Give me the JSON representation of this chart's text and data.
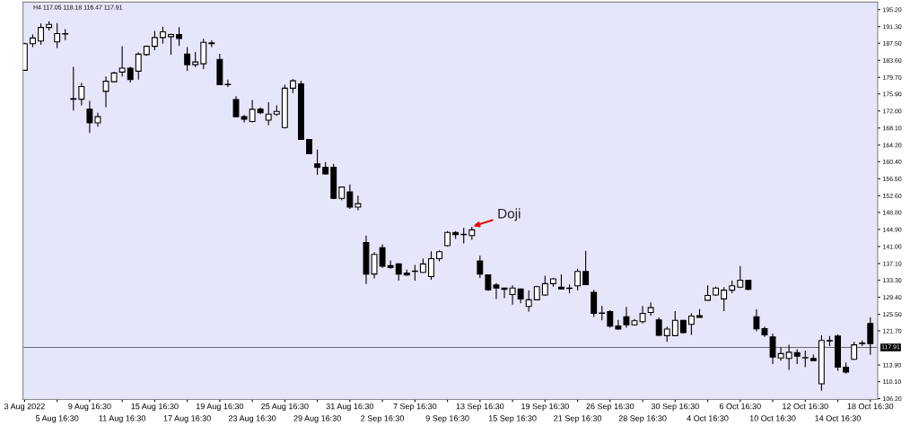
{
  "chart_data": {
    "type": "candlestick",
    "title": "H4 117.05 118.18 116.47 117.91",
    "categories": [
      "3 Aug 2022",
      null,
      null,
      null,
      "5 Aug 16:30",
      null,
      null,
      null,
      "9 Aug 16:30",
      null,
      null,
      null,
      "11 Aug 16:30",
      null,
      null,
      null,
      "15 Aug 16:30",
      null,
      null,
      null,
      "17 Aug 16:30",
      null,
      null,
      null,
      "19 Aug 16:30",
      null,
      null,
      null,
      "23 Aug 16:30",
      null,
      null,
      null,
      "25 Aug 16:30",
      null,
      null,
      null,
      "29 Aug 16:30",
      null,
      null,
      null,
      "31 Aug 16:30",
      null,
      null,
      null,
      "2 Sep 16:30",
      null,
      null,
      null,
      "7 Sep 16:30",
      null,
      null,
      null,
      "9 Sep 16:30",
      null,
      null,
      null,
      "13 Sep 16:30",
      null,
      null,
      null,
      "15 Sep 16:30",
      null,
      null,
      null,
      "19 Sep 16:30",
      null,
      null,
      null,
      "21 Sep 16:30",
      null,
      null,
      null,
      "26 Sep 16:30",
      null,
      null,
      null,
      "28 Sep 16:30",
      null,
      null,
      null,
      "30 Sep 16:30",
      null,
      null,
      null,
      "4 Oct 16:30",
      null,
      null,
      null,
      "6 Oct 16:30",
      null,
      null,
      null,
      "10 Oct 16:30",
      null,
      null,
      null,
      "12 Oct 16:30",
      null,
      null,
      null,
      "14 Oct 16:30",
      null,
      null,
      null,
      "18 Oct 16:30"
    ],
    "ohlc": [
      [
        181.3,
        187.6,
        181.3,
        187.4
      ],
      [
        187.4,
        189.5,
        186.6,
        188.7
      ],
      [
        188.0,
        192.0,
        187.2,
        191.1
      ],
      [
        191.1,
        192.5,
        190.4,
        191.8
      ],
      [
        187.8,
        192.1,
        186.4,
        189.7
      ],
      [
        189.7,
        190.7,
        188.2,
        189.6
      ],
      [
        174.8,
        182.1,
        172.1,
        174.7
      ],
      [
        174.7,
        178.4,
        173.3,
        177.6
      ],
      [
        172.4,
        174.3,
        167.0,
        169.3
      ],
      [
        169.3,
        171.6,
        168.4,
        170.7
      ],
      [
        176.5,
        179.9,
        172.9,
        178.8
      ],
      [
        178.7,
        181.0,
        178.5,
        180.7
      ],
      [
        180.9,
        186.8,
        179.9,
        181.8
      ],
      [
        181.8,
        182.1,
        178.5,
        179.2
      ],
      [
        181.1,
        185.4,
        179.2,
        185.0
      ],
      [
        184.9,
        187.0,
        184.6,
        186.8
      ],
      [
        186.8,
        190.3,
        185.9,
        188.8
      ],
      [
        188.8,
        191.3,
        187.4,
        190.1
      ],
      [
        189.0,
        189.7,
        184.9,
        189.5
      ],
      [
        189.5,
        191.2,
        186.9,
        188.6
      ],
      [
        185.0,
        186.6,
        181.2,
        182.6
      ],
      [
        182.6,
        185.5,
        182.0,
        183.2
      ],
      [
        182.8,
        188.5,
        181.6,
        187.7
      ],
      [
        187.4,
        188.2,
        186.6,
        187.6
      ],
      [
        183.8,
        185.1,
        177.9,
        178.0
      ],
      [
        178.1,
        179.2,
        177.5,
        178.0
      ],
      [
        174.6,
        175.4,
        170.5,
        170.7
      ],
      [
        170.7,
        171.1,
        169.4,
        170.1
      ],
      [
        169.6,
        174.5,
        169.4,
        172.4
      ],
      [
        172.4,
        172.8,
        171.3,
        171.6
      ],
      [
        169.9,
        174.0,
        168.7,
        171.3
      ],
      [
        171.3,
        173.3,
        170.9,
        171.9
      ],
      [
        168.2,
        178.0,
        168.0,
        177.2
      ],
      [
        177.2,
        179.3,
        176.1,
        178.9
      ],
      [
        178.2,
        178.9,
        165.5,
        165.5
      ],
      [
        165.5,
        165.6,
        162.1,
        162.2
      ],
      [
        159.9,
        163.2,
        157.4,
        159.1
      ],
      [
        159.1,
        160.3,
        157.4,
        157.6
      ],
      [
        159.1,
        159.9,
        151.9,
        152.0
      ],
      [
        152.0,
        154.7,
        151.6,
        154.6
      ],
      [
        153.5,
        155.2,
        149.6,
        150.0
      ],
      [
        150.0,
        152.6,
        149.3,
        150.8
      ],
      [
        141.9,
        143.5,
        132.4,
        134.7
      ],
      [
        134.7,
        139.7,
        133.7,
        139.2
      ],
      [
        140.7,
        141.5,
        136.1,
        136.5
      ],
      [
        136.6,
        137.8,
        135.9,
        136.2
      ],
      [
        137.0,
        137.2,
        133.2,
        134.7
      ],
      [
        134.9,
        135.7,
        134.3,
        134.5
      ],
      [
        135.3,
        136.8,
        133.2,
        135.4
      ],
      [
        135.1,
        138.2,
        135.0,
        137.0
      ],
      [
        134.1,
        139.9,
        133.4,
        138.2
      ],
      [
        138.2,
        140.1,
        137.6,
        139.8
      ],
      [
        141.2,
        144.5,
        141.0,
        144.2
      ],
      [
        144.2,
        144.5,
        142.8,
        143.7
      ],
      [
        143.7,
        145.3,
        141.7,
        143.8
      ],
      [
        143.5,
        145.5,
        142.5,
        144.8
      ],
      [
        137.7,
        138.9,
        133.8,
        134.7
      ],
      [
        134.5,
        134.6,
        130.9,
        131.1
      ],
      [
        132.2,
        132.6,
        129.0,
        131.5
      ],
      [
        131.5,
        131.6,
        129.2,
        131.2
      ],
      [
        130.0,
        132.1,
        127.7,
        131.5
      ],
      [
        131.3,
        131.4,
        128.0,
        129.0
      ],
      [
        127.3,
        131.0,
        126.1,
        128.8
      ],
      [
        128.8,
        132.0,
        128.7,
        131.8
      ],
      [
        129.9,
        134.3,
        129.7,
        132.5
      ],
      [
        132.5,
        133.8,
        131.8,
        133.6
      ],
      [
        131.7,
        134.6,
        131.2,
        131.3
      ],
      [
        131.4,
        132.3,
        130.3,
        131.5
      ],
      [
        132.0,
        135.9,
        131.0,
        135.3
      ],
      [
        135.3,
        140.0,
        132.2,
        132.3
      ],
      [
        130.5,
        131.1,
        124.9,
        125.7
      ],
      [
        125.8,
        127.4,
        124.1,
        125.7
      ],
      [
        126.1,
        126.4,
        122.4,
        122.8
      ],
      [
        122.8,
        124.2,
        122.0,
        122.1
      ],
      [
        124.9,
        127.2,
        122.4,
        123.1
      ],
      [
        123.1,
        124.4,
        122.9,
        124.0
      ],
      [
        123.8,
        127.4,
        123.4,
        125.7
      ],
      [
        125.9,
        128.2,
        125.2,
        127.0
      ],
      [
        124.2,
        124.8,
        120.5,
        120.7
      ],
      [
        120.6,
        122.7,
        119.2,
        122.1
      ],
      [
        120.6,
        126.2,
        120.5,
        124.1
      ],
      [
        124.1,
        124.2,
        121.1,
        121.3
      ],
      [
        123.2,
        125.7,
        120.8,
        125.1
      ],
      [
        125.2,
        126.7,
        124.8,
        124.8
      ],
      [
        128.7,
        132.1,
        128.6,
        129.8
      ],
      [
        129.9,
        131.8,
        129.7,
        131.5
      ],
      [
        129.0,
        131.7,
        126.2,
        131.0
      ],
      [
        131.0,
        133.2,
        130.3,
        132.0
      ],
      [
        131.7,
        136.5,
        131.5,
        133.3
      ],
      [
        133.3,
        133.4,
        131.0,
        131.2
      ],
      [
        124.9,
        126.6,
        121.6,
        122.2
      ],
      [
        122.2,
        122.7,
        120.3,
        120.8
      ],
      [
        120.3,
        121.1,
        114.1,
        115.7
      ],
      [
        115.5,
        117.9,
        114.9,
        116.5
      ],
      [
        115.4,
        118.5,
        112.8,
        116.8
      ],
      [
        116.7,
        117.5,
        114.1,
        115.9
      ],
      [
        115.5,
        117.2,
        113.4,
        115.6
      ],
      [
        115.4,
        116.3,
        114.8,
        114.9
      ],
      [
        109.6,
        120.7,
        108.0,
        119.5
      ],
      [
        119.5,
        120.5,
        118.2,
        119.4
      ],
      [
        120.5,
        120.9,
        112.6,
        113.4
      ],
      [
        113.4,
        114.4,
        111.9,
        112.3
      ],
      [
        115.2,
        119.2,
        115.1,
        118.5
      ],
      [
        118.8,
        119.5,
        118.2,
        118.9
      ],
      [
        123.4,
        124.8,
        116.2,
        118.8
      ]
    ],
    "ylim": [
      106.0,
      196.9
    ],
    "yticks": [
      {
        "value": 106.2,
        "label": "106.20"
      },
      {
        "value": 110.1,
        "label": "110.10"
      },
      {
        "value": 113.9,
        "label": "113.90"
      },
      {
        "value": 121.7,
        "label": "121.70"
      },
      {
        "value": 125.5,
        "label": "125.50"
      },
      {
        "value": 129.4,
        "label": "129.40"
      },
      {
        "value": 133.3,
        "label": "133.30"
      },
      {
        "value": 137.1,
        "label": "137.10"
      },
      {
        "value": 141.0,
        "label": "141.00"
      },
      {
        "value": 144.9,
        "label": "144.90"
      },
      {
        "value": 148.8,
        "label": "148.80"
      },
      {
        "value": 152.6,
        "label": "152.60"
      },
      {
        "value": 156.5,
        "label": "156.50"
      },
      {
        "value": 160.4,
        "label": "160.40"
      },
      {
        "value": 164.2,
        "label": "164.20"
      },
      {
        "value": 168.1,
        "label": "168.10"
      },
      {
        "value": 172.0,
        "label": "172.00"
      },
      {
        "value": 175.9,
        "label": "175.90"
      },
      {
        "value": 179.7,
        "label": "179.70"
      },
      {
        "value": 183.6,
        "label": "183.60"
      },
      {
        "value": 187.5,
        "label": "187.50"
      },
      {
        "value": 191.3,
        "label": "191.30"
      },
      {
        "value": 195.2,
        "label": "195.20"
      }
    ],
    "ref_lines": [
      {
        "axis": "y",
        "value": 117.91,
        "label": "117.91",
        "color": "#000000"
      }
    ],
    "annotations": [
      "Doji"
    ],
    "grid": false
  }
}
